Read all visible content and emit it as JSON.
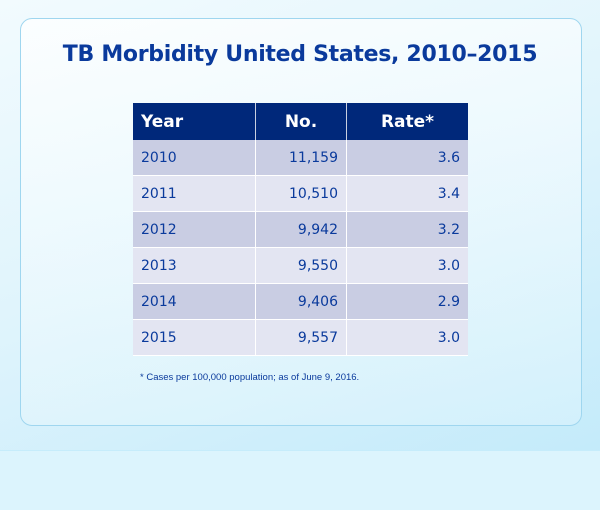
{
  "title": "TB Morbidity United States, 2010–2015",
  "footnote": "*  Cases per 100,000 population; as of June 9, 2016.",
  "colors": {
    "header_bg": "#00287a",
    "text": "#0a3a9c",
    "row_dark": "#c9cde3",
    "row_light": "#e3e5f2"
  },
  "chart_data": {
    "type": "table",
    "title": "TB Morbidity United States, 2010–2015",
    "columns": [
      "Year",
      "No.",
      "Rate*"
    ],
    "rows": [
      [
        "2010",
        "11,159",
        "3.6"
      ],
      [
        "2011",
        "10,510",
        "3.4"
      ],
      [
        "2012",
        "9,942",
        "3.2"
      ],
      [
        "2013",
        "9,550",
        "3.0"
      ],
      [
        "2014",
        "9,406",
        "2.9"
      ],
      [
        "2015",
        "9,557",
        "3.0"
      ]
    ],
    "footnote": "*  Cases per 100,000 population; as of June 9, 2016."
  }
}
